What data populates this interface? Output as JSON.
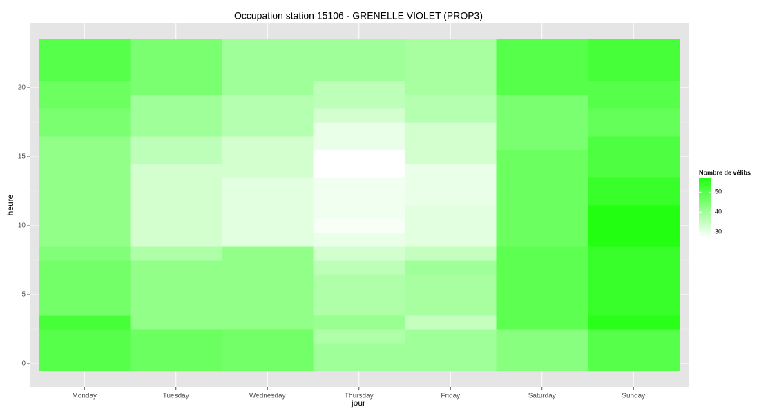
{
  "chart_data": {
    "type": "heatmap",
    "title": "Occupation station 15106 - GRENELLE VIOLET (PROP3)",
    "xlabel": "jour",
    "ylabel": "heure",
    "categories": [
      "Monday",
      "Tuesday",
      "Wednesday",
      "Thursday",
      "Friday",
      "Saturday",
      "Sunday"
    ],
    "hours": [
      0,
      1,
      2,
      3,
      4,
      5,
      6,
      7,
      8,
      9,
      10,
      11,
      12,
      13,
      14,
      15,
      16,
      17,
      18,
      19,
      20,
      21,
      22,
      23
    ],
    "values": [
      [
        50,
        50,
        50,
        52,
        46,
        46,
        46,
        46,
        44,
        42,
        42,
        42,
        42,
        42,
        42,
        42,
        42,
        45,
        45,
        47,
        47,
        50,
        50,
        50
      ],
      [
        47,
        47,
        47,
        42,
        42,
        42,
        42,
        42,
        38,
        33,
        33,
        33,
        33,
        33,
        33,
        36,
        36,
        40,
        40,
        40,
        45,
        45,
        45,
        45
      ],
      [
        46,
        46,
        46,
        42,
        42,
        42,
        42,
        42,
        42,
        31,
        31,
        31,
        31,
        31,
        33,
        33,
        33,
        37,
        37,
        37,
        40,
        40,
        40,
        40
      ],
      [
        40,
        40,
        38,
        41,
        38,
        38,
        38,
        36,
        33,
        30,
        28,
        29,
        29,
        29,
        27,
        27,
        30,
        30,
        33,
        36,
        36,
        40,
        40,
        40
      ],
      [
        40,
        40,
        40,
        35,
        39,
        39,
        39,
        40,
        35,
        31,
        31,
        31,
        30,
        30,
        30,
        33,
        33,
        33,
        37,
        37,
        39,
        39,
        39,
        39
      ],
      [
        43,
        43,
        43,
        49,
        49,
        49,
        49,
        49,
        49,
        47,
        47,
        47,
        47,
        47,
        47,
        47,
        45,
        45,
        45,
        45,
        50,
        50,
        50,
        50
      ],
      [
        50,
        50,
        50,
        56,
        54,
        54,
        54,
        54,
        54,
        57,
        57,
        57,
        54,
        54,
        51,
        51,
        51,
        48,
        48,
        50,
        50,
        52,
        52,
        52
      ]
    ],
    "ylim": [
      -1.7,
      24.7
    ],
    "yticks": [
      0,
      5,
      10,
      15,
      20
    ],
    "legend_title": "Nombre de vélibs",
    "clim": [
      27,
      57
    ],
    "cticks": [
      30,
      40,
      50
    ],
    "color_low": "#ffffff",
    "color_high": "#22ff11",
    "grid": true
  }
}
